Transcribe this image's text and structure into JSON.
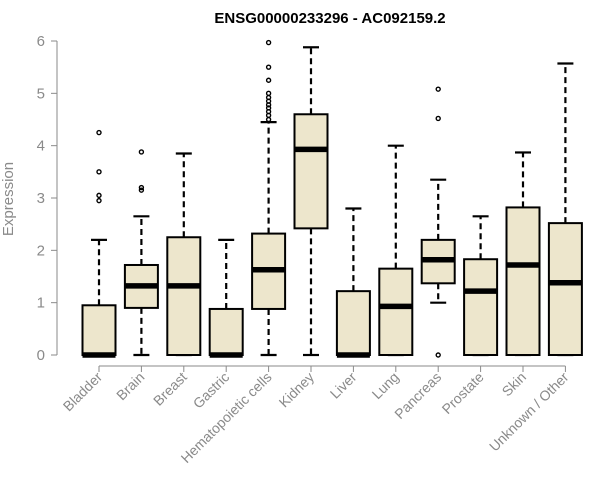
{
  "chart_data": {
    "type": "box",
    "title": "ENSG00000233296 - AC092159.2",
    "ylabel": "Expression",
    "xlabel": "",
    "ylim": [
      0,
      6
    ],
    "yticks": [
      "0",
      "1",
      "2",
      "3",
      "4",
      "5",
      "6"
    ],
    "box_fill": "#ede6cc",
    "box_stroke": "#000000",
    "categories": [
      "Bladder",
      "Brain",
      "Breast",
      "Gastric",
      "Hematopoietic cells",
      "Kidney",
      "Liver",
      "Lung",
      "Pancreas",
      "Prostate",
      "Skin",
      "Unknown / Other"
    ],
    "boxes": [
      {
        "whisker_low": 0,
        "q1": 0,
        "median": 0,
        "q3": 0.95,
        "whisker_high": 2.2,
        "outliers": [
          2.95,
          3.05,
          3.5,
          4.25
        ]
      },
      {
        "whisker_low": 0,
        "q1": 0.9,
        "median": 1.32,
        "q3": 1.72,
        "whisker_high": 2.65,
        "outliers": [
          3.15,
          3.2,
          3.88
        ]
      },
      {
        "whisker_low": 0,
        "q1": 0,
        "median": 1.32,
        "q3": 2.25,
        "whisker_high": 3.85,
        "outliers": []
      },
      {
        "whisker_low": 0,
        "q1": 0,
        "median": 0,
        "q3": 0.88,
        "whisker_high": 2.2,
        "outliers": []
      },
      {
        "whisker_low": 0,
        "q1": 0.88,
        "median": 1.63,
        "q3": 2.32,
        "whisker_high": 4.45,
        "outliers": [
          4.5,
          4.58,
          4.65,
          4.72,
          4.78,
          4.85,
          4.92,
          5.0,
          5.25,
          5.5,
          5.97
        ]
      },
      {
        "whisker_low": 0,
        "q1": 2.42,
        "median": 3.93,
        "q3": 4.6,
        "whisker_high": 5.88,
        "outliers": []
      },
      {
        "whisker_low": 0,
        "q1": 0,
        "median": 0,
        "q3": 1.22,
        "whisker_high": 2.8,
        "outliers": []
      },
      {
        "whisker_low": 0,
        "q1": 0,
        "median": 0.93,
        "q3": 1.65,
        "whisker_high": 4.0,
        "outliers": []
      },
      {
        "whisker_low": 1.0,
        "q1": 1.37,
        "median": 1.82,
        "q3": 2.2,
        "whisker_high": 3.35,
        "outliers": [
          0,
          4.52,
          5.08
        ]
      },
      {
        "whisker_low": 0,
        "q1": 0,
        "median": 1.22,
        "q3": 1.83,
        "whisker_high": 2.65,
        "outliers": []
      },
      {
        "whisker_low": 0,
        "q1": 0,
        "median": 1.72,
        "q3": 2.82,
        "whisker_high": 3.87,
        "outliers": []
      },
      {
        "whisker_low": 0,
        "q1": 0,
        "median": 1.38,
        "q3": 2.52,
        "whisker_high": 5.57,
        "outliers": []
      }
    ]
  }
}
